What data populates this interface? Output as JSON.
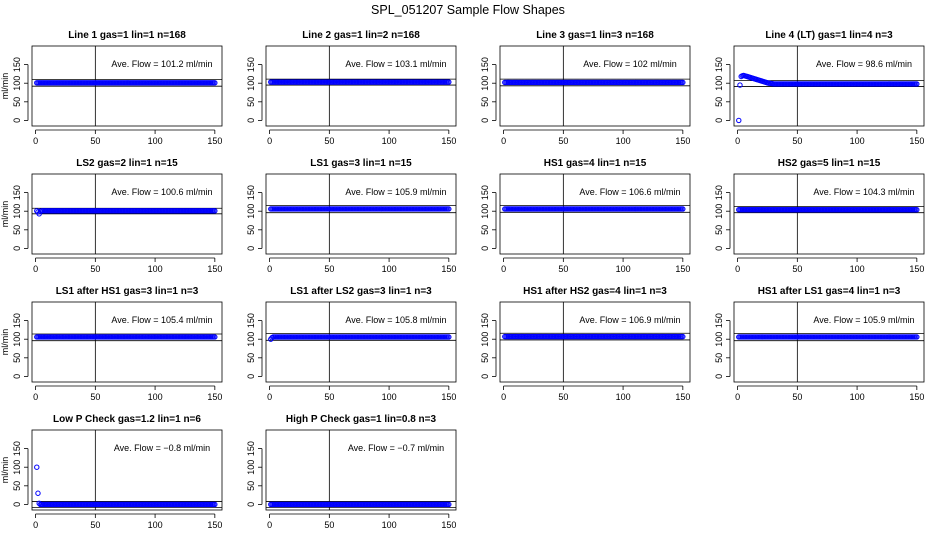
{
  "page_title": "SPL_051207  Sample Flow Shapes",
  "chart_data": {
    "type": "scatter",
    "x_ticks": [
      0,
      50,
      100,
      150
    ],
    "y_ticks": [
      0,
      50,
      100,
      150
    ],
    "ylabel": "ml/min",
    "xlim": [
      -3,
      156
    ],
    "ylim": [
      -15,
      200
    ],
    "vline_x": 50,
    "point_color": "#0000ff",
    "line_color": "#000000",
    "panels": [
      {
        "title": "Line 1 gas=1 lin=1 n=168",
        "avg_label": "Ave. Flow =  101.2  ml/min",
        "avg_value": 101.2,
        "hlines": [
          92,
          110
        ],
        "series": {
          "x_start": 1,
          "x_end": 150,
          "step": 1,
          "values": [
            101
          ]
        }
      },
      {
        "title": "Line 2 gas=1 lin=2 n=168",
        "avg_label": "Ave. Flow =  103.1  ml/min",
        "avg_value": 103.1,
        "hlines": [
          95,
          111
        ],
        "series": {
          "x_start": 1,
          "x_end": 150,
          "step": 1,
          "values": [
            103
          ]
        }
      },
      {
        "title": "Line 3 gas=1 lin=3 n=168",
        "avg_label": "Ave. Flow =  102  ml/min",
        "avg_value": 102,
        "hlines": [
          93,
          111
        ],
        "series": {
          "x_start": 1,
          "x_end": 150,
          "step": 1,
          "values": [
            102
          ]
        }
      },
      {
        "title": "Line 4 (LT) gas=1 lin=4 n=3",
        "avg_label": "Ave. Flow =  98.6  ml/min",
        "avg_value": 98.6,
        "hlines": [
          91,
          107
        ],
        "series": {
          "x_start": 1,
          "x_end": 150,
          "step": 1,
          "values": [
            0,
            95,
            118,
            120,
            121,
            120,
            119,
            118,
            117,
            116,
            115,
            114,
            113,
            112,
            111,
            110,
            109,
            108,
            107,
            106,
            105,
            104,
            103,
            102,
            101,
            100,
            100,
            99,
            99,
            98
          ]
        }
      },
      {
        "title": "LS2 gas=2 lin=1 n=15",
        "avg_label": "Ave. Flow =  100.6  ml/min",
        "avg_value": 100.6,
        "hlines": [
          93,
          108
        ],
        "series": {
          "x_start": 1,
          "x_end": 150,
          "step": 1,
          "values": [
            101,
            98,
            93,
            100,
            101
          ]
        }
      },
      {
        "title": "LS1 gas=3 lin=1 n=15",
        "avg_label": "Ave. Flow =  105.9  ml/min",
        "avg_value": 105.9,
        "hlines": [
          96,
          115
        ],
        "series": {
          "x_start": 1,
          "x_end": 150,
          "step": 1,
          "values": [
            106
          ]
        }
      },
      {
        "title": "HS1 gas=4 lin=1 n=15",
        "avg_label": "Ave. Flow =  106.6  ml/min",
        "avg_value": 106.6,
        "hlines": [
          97,
          115
        ],
        "series": {
          "x_start": 1,
          "x_end": 150,
          "step": 1,
          "values": [
            106
          ]
        }
      },
      {
        "title": "HS2 gas=5 lin=1 n=15",
        "avg_label": "Ave. Flow =  104.3  ml/min",
        "avg_value": 104.3,
        "hlines": [
          96,
          113
        ],
        "series": {
          "x_start": 1,
          "x_end": 150,
          "step": 1,
          "values": [
            104
          ]
        }
      },
      {
        "title": "LS1 after HS1 gas=3 lin=1 n=3",
        "avg_label": "Ave. Flow =  105.4  ml/min",
        "avg_value": 105.4,
        "hlines": [
          96,
          114
        ],
        "series": {
          "x_start": 1,
          "x_end": 150,
          "step": 1,
          "values": [
            106
          ]
        }
      },
      {
        "title": "LS1 after LS2 gas=3 lin=1 n=3",
        "avg_label": "Ave. Flow =  105.8  ml/min",
        "avg_value": 105.8,
        "hlines": [
          97,
          115
        ],
        "series": {
          "x_start": 1,
          "x_end": 150,
          "step": 1,
          "values": [
            100,
            104,
            106
          ]
        }
      },
      {
        "title": "HS1 after HS2 gas=4 lin=1 n=3",
        "avg_label": "Ave. Flow =  106.9  ml/min",
        "avg_value": 106.9,
        "hlines": [
          98,
          116
        ],
        "series": {
          "x_start": 1,
          "x_end": 150,
          "step": 1,
          "values": [
            107
          ]
        }
      },
      {
        "title": "HS1 after LS1 gas=4 lin=1 n=3",
        "avg_label": "Ave. Flow =  105.9  ml/min",
        "avg_value": 105.9,
        "hlines": [
          96,
          115
        ],
        "series": {
          "x_start": 1,
          "x_end": 150,
          "step": 1,
          "values": [
            106
          ]
        }
      },
      {
        "title": "Low P Check gas=1.2 lin=1 n=6",
        "avg_label": "Ave. Flow =  −0.8  ml/min",
        "avg_value": -0.8,
        "hlines": [
          -8,
          8
        ],
        "series": {
          "x_start": 1,
          "x_end": 150,
          "step": 1,
          "values": [
            100,
            30,
            3,
            0
          ]
        }
      },
      {
        "title": "High P Check gas=1 lin=0.8 n=3",
        "avg_label": "Ave. Flow =  −0.7  ml/min",
        "avg_value": -0.7,
        "hlines": [
          -8,
          8
        ],
        "series": {
          "x_start": 1,
          "x_end": 150,
          "step": 1,
          "values": [
            0
          ]
        }
      }
    ]
  }
}
